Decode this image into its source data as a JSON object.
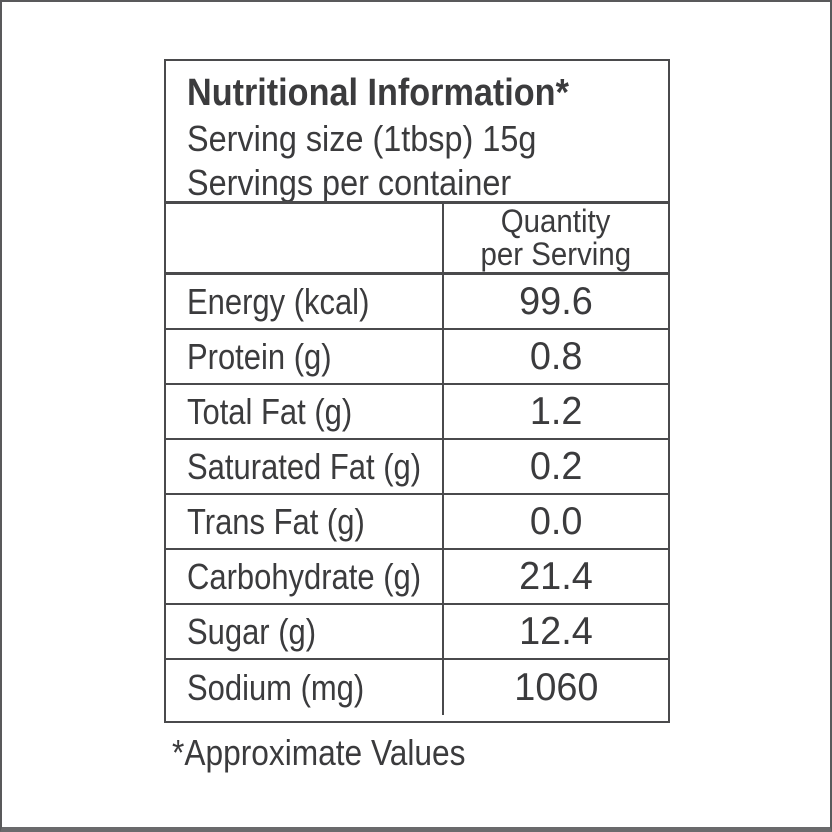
{
  "colors": {
    "page-bg": "#ffffff",
    "text": "#3b3b3d",
    "table-line": "#4a4a4c",
    "frame": "#59595b",
    "frame-bottom": "#6a6a6c"
  },
  "label": {
    "title": "Nutritional Information*",
    "serving_size": "Serving size (1tbsp) 15g",
    "servings_per_container": "Servings per container",
    "quantity_header": {
      "line1": "Quantity",
      "line2": "per Serving"
    },
    "rows": [
      {
        "label": "Energy (kcal)",
        "value": "99.6"
      },
      {
        "label": "Protein (g)",
        "value": "0.8"
      },
      {
        "label": "Total Fat (g)",
        "value": "1.2"
      },
      {
        "label": "Saturated Fat (g)",
        "value": "0.2"
      },
      {
        "label": "Trans Fat (g)",
        "value": "0.0"
      },
      {
        "label": "Carbohydrate (g)",
        "value": "21.4"
      },
      {
        "label": "Sugar (g)",
        "value": "12.4"
      },
      {
        "label": "Sodium (mg)",
        "value": "1060"
      }
    ],
    "footnote": "*Approximate Values"
  }
}
